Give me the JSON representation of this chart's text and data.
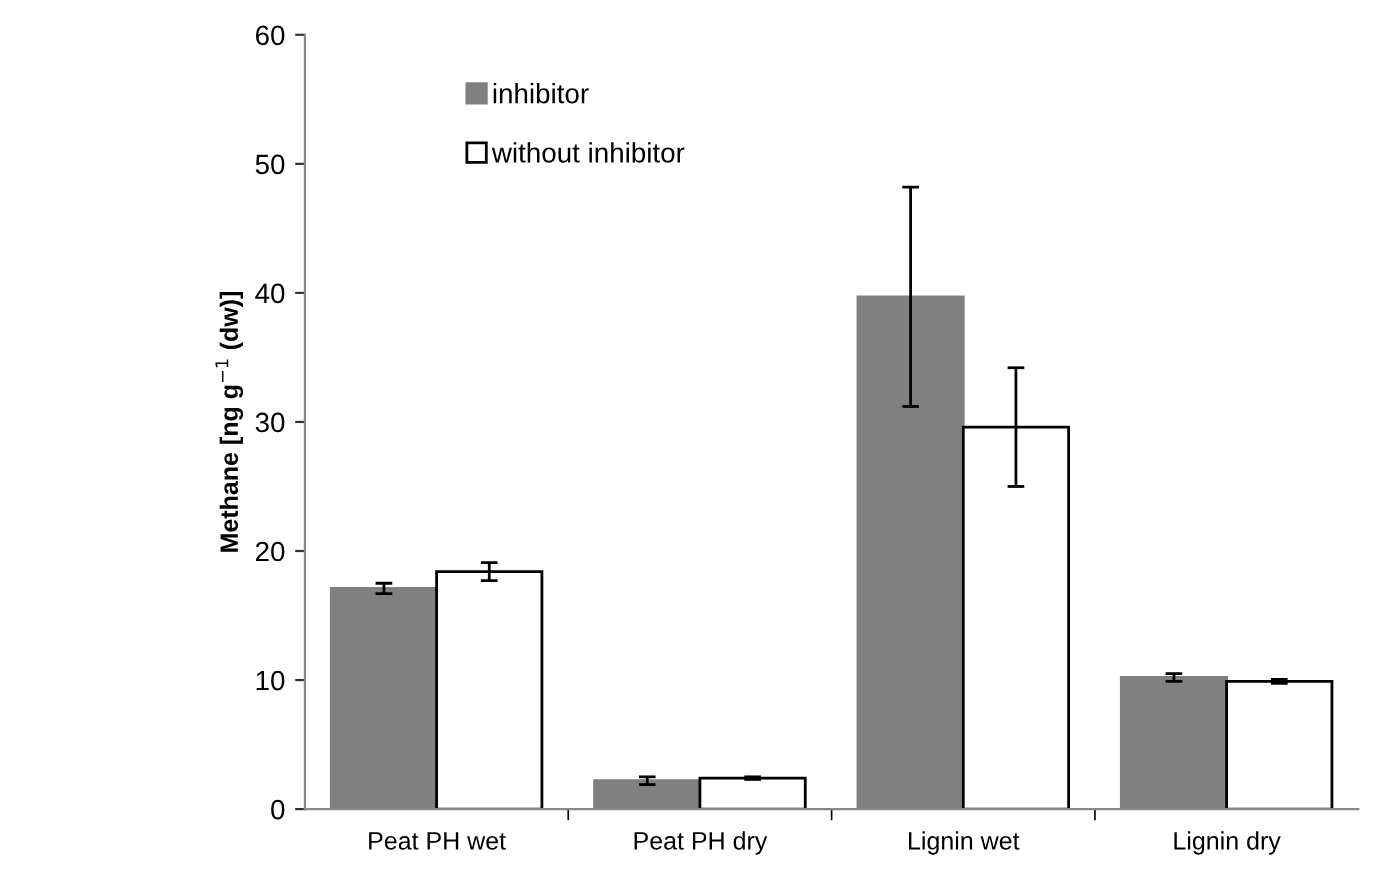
{
  "chart_data": {
    "type": "bar",
    "ylabel": "Methane [ng g$^{−1}$ (dw)]",
    "categories": [
      "Peat PH wet",
      "Peat PH dry",
      "Lignin wet",
      "Lignin dry"
    ],
    "series": [
      {
        "name": "inhibitor",
        "color": "#808080",
        "values": [
          17.1,
          2.2,
          39.7,
          10.2
        ],
        "errors": [
          0.4,
          0.3,
          8.5,
          0.3
        ]
      },
      {
        "name": "without inhibitor",
        "color": "#ffffff",
        "values": [
          18.4,
          2.4,
          29.6,
          9.9
        ],
        "errors": [
          0.7,
          0.1,
          4.6,
          0.15
        ]
      }
    ],
    "ylim": [
      0,
      60
    ],
    "yticks": [
      0,
      10,
      20,
      30,
      40,
      50,
      60
    ],
    "grid": false,
    "legend": "top left"
  }
}
